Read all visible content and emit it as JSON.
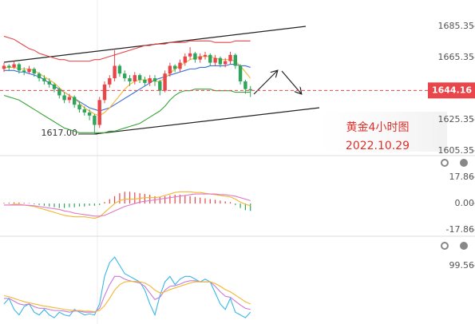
{
  "chart_data": [
    {
      "type": "candlestick",
      "title": "黄金4小时图",
      "subtitle": "2022.10.29",
      "low_label": "1617.00",
      "last_price": 1644.16,
      "up_color": "#e8464a",
      "down_color": "#2fa55a",
      "ylim": [
        1603.3,
        1702.3
      ],
      "yticks": [
        1605.35,
        1625.35,
        1665.35,
        1685.35
      ],
      "open": [
        1658,
        1660,
        1659,
        1661,
        1657,
        1656,
        1658,
        1655,
        1652,
        1650,
        1648,
        1645,
        1641,
        1638,
        1640,
        1635,
        1632,
        1630,
        1628,
        1622,
        1638,
        1648,
        1652,
        1660,
        1655,
        1652,
        1650,
        1654,
        1651,
        1649,
        1652,
        1650,
        1644,
        1655,
        1660,
        1658,
        1662,
        1666,
        1668,
        1664,
        1666,
        1667,
        1662,
        1665,
        1661,
        1663,
        1667,
        1660,
        1650,
        1645
      ],
      "high": [
        1662,
        1661,
        1663,
        1662,
        1659,
        1660,
        1659,
        1656,
        1654,
        1652,
        1649,
        1646,
        1643,
        1642,
        1641,
        1637,
        1634,
        1632,
        1629,
        1640,
        1650,
        1654,
        1670,
        1661,
        1657,
        1654,
        1656,
        1655,
        1653,
        1654,
        1654,
        1651,
        1657,
        1662,
        1661,
        1664,
        1668,
        1672,
        1669,
        1668,
        1669,
        1668,
        1667,
        1666,
        1665,
        1669,
        1668,
        1661,
        1651,
        1647
      ],
      "low": [
        1656,
        1657,
        1658,
        1655,
        1654,
        1655,
        1653,
        1650,
        1648,
        1646,
        1643,
        1639,
        1636,
        1636,
        1633,
        1630,
        1628,
        1625,
        1617,
        1620,
        1636,
        1646,
        1650,
        1653,
        1650,
        1647,
        1648,
        1649,
        1647,
        1647,
        1647,
        1641,
        1643,
        1653,
        1656,
        1656,
        1660,
        1664,
        1662,
        1662,
        1664,
        1660,
        1660,
        1659,
        1659,
        1661,
        1658,
        1648,
        1642,
        1640
      ],
      "close": [
        1660,
        1659,
        1661,
        1657,
        1656,
        1658,
        1655,
        1652,
        1650,
        1648,
        1645,
        1641,
        1638,
        1640,
        1635,
        1632,
        1630,
        1628,
        1622,
        1638,
        1648,
        1652,
        1660,
        1655,
        1652,
        1650,
        1654,
        1651,
        1649,
        1652,
        1650,
        1644,
        1655,
        1660,
        1658,
        1662,
        1666,
        1668,
        1664,
        1666,
        1667,
        1662,
        1665,
        1661,
        1663,
        1667,
        1660,
        1650,
        1645,
        1644.16
      ],
      "lines": [
        {
          "color": "#e8464a",
          "values": [
            1679,
            1678,
            1677,
            1675,
            1673,
            1671,
            1670,
            1668,
            1667,
            1666,
            1665,
            1664,
            1664,
            1663,
            1663,
            1663,
            1663,
            1663,
            1664,
            1664,
            1665,
            1666,
            1667,
            1668,
            1669,
            1670,
            1671,
            1672,
            1673,
            1673,
            1674,
            1674,
            1674,
            1675,
            1675,
            1675,
            1675,
            1676,
            1676,
            1676,
            1676,
            1676,
            1675,
            1675,
            1675,
            1675,
            1676,
            1676,
            1676,
            1676
          ]
        },
        {
          "color": "#3a6fd8",
          "values": [
            1657,
            1657,
            1657,
            1656,
            1656,
            1655,
            1654,
            1653,
            1651,
            1649,
            1647,
            1645,
            1643,
            1641,
            1639,
            1637,
            1635,
            1633,
            1632,
            1631,
            1632,
            1633,
            1635,
            1637,
            1639,
            1641,
            1643,
            1645,
            1647,
            1649,
            1651,
            1652,
            1653,
            1654,
            1655,
            1656,
            1657,
            1658,
            1658,
            1659,
            1659,
            1660,
            1660,
            1660,
            1660,
            1661,
            1661,
            1660,
            1660,
            1659
          ]
        },
        {
          "color": "#3aa53a",
          "values": [
            1641,
            1640,
            1639,
            1638,
            1636,
            1634,
            1632,
            1630,
            1628,
            1626,
            1624,
            1622,
            1620,
            1619,
            1618,
            1617,
            1617,
            1617,
            1617,
            1617,
            1617,
            1618,
            1618,
            1619,
            1620,
            1621,
            1622,
            1623,
            1625,
            1627,
            1629,
            1631,
            1634,
            1638,
            1641,
            1643,
            1644,
            1644,
            1645,
            1645,
            1645,
            1645,
            1644,
            1644,
            1644,
            1644,
            1643,
            1643,
            1643,
            1643
          ]
        },
        {
          "color": "#f2b731",
          "values": [
            1659,
            1659,
            1659,
            1658,
            1658,
            1658,
            1657,
            1655,
            1653,
            1651,
            1649,
            1646,
            1643,
            1641,
            1639,
            1636,
            1633,
            1631,
            1629,
            1628,
            1630,
            1633,
            1637,
            1641,
            1645,
            1648,
            1650,
            1651,
            1651,
            1651,
            1650,
            1650,
            1652,
            1655,
            1658,
            1660,
            1662,
            1664,
            1665,
            1666,
            1666,
            1666,
            1665,
            1664,
            1664,
            1664,
            1663,
            1660,
            1656,
            1652
          ]
        }
      ]
    },
    {
      "type": "macd",
      "up_color": "#e8464a",
      "down_color": "#2fa55a",
      "ylim": [
        -21.6,
        31.4
      ],
      "yticks": [
        17.86,
        {
          "value": 0,
          "label": "0.00"
        },
        -17.86
      ],
      "values": [
        0.5,
        0.6,
        0.8,
        0.7,
        0.5,
        0.3,
        -0.5,
        -1,
        -1.5,
        -2,
        -2.5,
        -3,
        -3,
        -2.5,
        -2.5,
        -2,
        -2,
        -1.5,
        -1.5,
        -1,
        1,
        3,
        5,
        7,
        8,
        8,
        7.5,
        7,
        6.5,
        6,
        5,
        4.5,
        5,
        5.5,
        6,
        6,
        5.5,
        5,
        4.5,
        4,
        3.5,
        3,
        2.5,
        2,
        1.5,
        1,
        -1,
        -3,
        -4.5,
        -5
      ],
      "lines": [
        {
          "color": "#f2b731",
          "values": [
            -1,
            -1,
            -0.5,
            -0.5,
            -1,
            -1.5,
            -2,
            -3,
            -4,
            -5,
            -6,
            -7,
            -8,
            -8.5,
            -9,
            -9,
            -9,
            -9.5,
            -10,
            -9,
            -6,
            -3,
            0,
            2,
            3,
            3,
            3,
            3.5,
            4,
            4,
            4,
            4.5,
            5.5,
            6.5,
            7.5,
            8,
            8,
            8,
            7.5,
            7.5,
            7,
            6.5,
            6,
            5.5,
            5,
            4.5,
            3,
            1,
            -0.5,
            -1.5
          ]
        },
        {
          "color": "#e078c8",
          "values": [
            -1,
            -1,
            -1,
            -1,
            -1,
            -1.2,
            -1.5,
            -2,
            -2.5,
            -3,
            -3.5,
            -4,
            -5,
            -5.5,
            -6.5,
            -7,
            -7.5,
            -8,
            -8.5,
            -8.5,
            -8,
            -6.5,
            -5,
            -3.5,
            -2,
            -1,
            0,
            1,
            1.5,
            2,
            2.5,
            3,
            3.5,
            4,
            4.5,
            5,
            5.5,
            6,
            6.5,
            6.5,
            6.5,
            6.5,
            6.5,
            6,
            6,
            5.5,
            5,
            4,
            3,
            2
          ]
        }
      ]
    },
    {
      "type": "line",
      "ylim": [
        -5,
        150
      ],
      "yticks": [
        99.56
      ],
      "lines": [
        {
          "color": "#38b6e8",
          "values": [
            30,
            40,
            20,
            10,
            25,
            30,
            15,
            10,
            20,
            10,
            5,
            15,
            10,
            8,
            20,
            15,
            10,
            12,
            10,
            30,
            80,
            105,
            115,
            100,
            85,
            80,
            75,
            70,
            55,
            30,
            10,
            45,
            70,
            80,
            65,
            75,
            80,
            80,
            75,
            70,
            75,
            70,
            50,
            30,
            20,
            40,
            15,
            10,
            5,
            15
          ]
        },
        {
          "color": "#c77ad8",
          "values": [
            40,
            40,
            35,
            30,
            28,
            30,
            25,
            22,
            22,
            20,
            18,
            18,
            17,
            15,
            17,
            17,
            15,
            15,
            15,
            22,
            45,
            65,
            80,
            80,
            75,
            72,
            70,
            68,
            62,
            50,
            38,
            42,
            55,
            62,
            63,
            66,
            70,
            72,
            72,
            70,
            70,
            70,
            62,
            52,
            44,
            42,
            35,
            28,
            22,
            20
          ]
        },
        {
          "color": "#f2b731",
          "values": [
            45,
            43,
            40,
            37,
            34,
            32,
            30,
            28,
            26,
            25,
            23,
            22,
            20,
            19,
            18,
            18,
            17,
            17,
            16,
            18,
            27,
            40,
            55,
            65,
            70,
            71,
            71,
            70,
            68,
            63,
            55,
            50,
            52,
            56,
            59,
            62,
            65,
            68,
            70,
            70,
            70,
            70,
            67,
            62,
            56,
            52,
            46,
            40,
            34,
            30
          ]
        }
      ]
    }
  ]
}
